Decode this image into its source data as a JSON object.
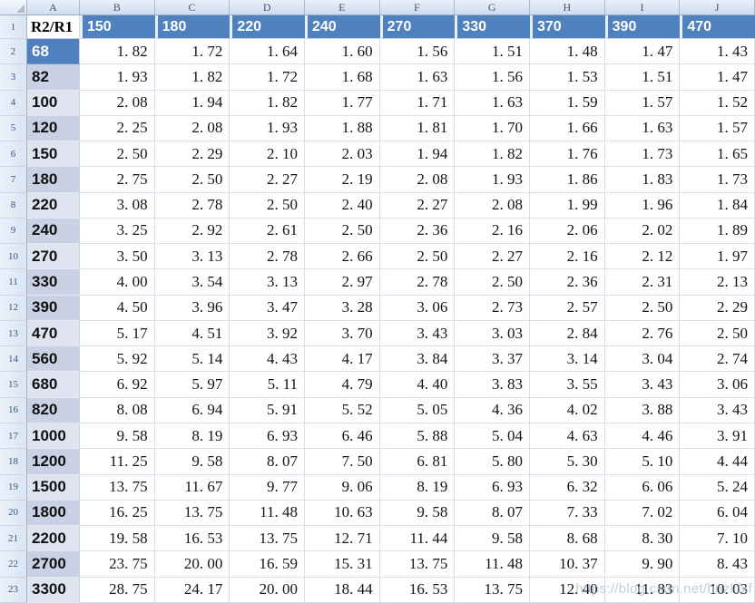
{
  "column_letters": [
    "A",
    "B",
    "C",
    "D",
    "E",
    "F",
    "G",
    "H",
    "I",
    "J"
  ],
  "header_row": {
    "row_number": "1",
    "corner_label": "R2/R1",
    "values": [
      "150",
      "180",
      "220",
      "240",
      "270",
      "330",
      "370",
      "390",
      "470"
    ]
  },
  "rows": [
    {
      "row_number": "2",
      "label": "68",
      "band": "blue",
      "values": [
        "1. 82",
        "1. 72",
        "1. 64",
        "1. 60",
        "1. 56",
        "1. 51",
        "1. 48",
        "1. 47",
        "1. 43"
      ]
    },
    {
      "row_number": "3",
      "label": "82",
      "band": "dark",
      "values": [
        "1. 93",
        "1. 82",
        "1. 72",
        "1. 68",
        "1. 63",
        "1. 56",
        "1. 53",
        "1. 51",
        "1. 47"
      ]
    },
    {
      "row_number": "4",
      "label": "100",
      "band": "light",
      "values": [
        "2. 08",
        "1. 94",
        "1. 82",
        "1. 77",
        "1. 71",
        "1. 63",
        "1. 59",
        "1. 57",
        "1. 52"
      ]
    },
    {
      "row_number": "5",
      "label": "120",
      "band": "dark",
      "values": [
        "2. 25",
        "2. 08",
        "1. 93",
        "1. 88",
        "1. 81",
        "1. 70",
        "1. 66",
        "1. 63",
        "1. 57"
      ]
    },
    {
      "row_number": "6",
      "label": "150",
      "band": "light",
      "values": [
        "2. 50",
        "2. 29",
        "2. 10",
        "2. 03",
        "1. 94",
        "1. 82",
        "1. 76",
        "1. 73",
        "1. 65"
      ]
    },
    {
      "row_number": "7",
      "label": "180",
      "band": "dark",
      "values": [
        "2. 75",
        "2. 50",
        "2. 27",
        "2. 19",
        "2. 08",
        "1. 93",
        "1. 86",
        "1. 83",
        "1. 73"
      ]
    },
    {
      "row_number": "8",
      "label": "220",
      "band": "light",
      "values": [
        "3. 08",
        "2. 78",
        "2. 50",
        "2. 40",
        "2. 27",
        "2. 08",
        "1. 99",
        "1. 96",
        "1. 84"
      ]
    },
    {
      "row_number": "9",
      "label": "240",
      "band": "dark",
      "values": [
        "3. 25",
        "2. 92",
        "2. 61",
        "2. 50",
        "2. 36",
        "2. 16",
        "2. 06",
        "2. 02",
        "1. 89"
      ]
    },
    {
      "row_number": "10",
      "label": "270",
      "band": "light",
      "values": [
        "3. 50",
        "3. 13",
        "2. 78",
        "2. 66",
        "2. 50",
        "2. 27",
        "2. 16",
        "2. 12",
        "1. 97"
      ]
    },
    {
      "row_number": "11",
      "label": "330",
      "band": "dark",
      "values": [
        "4. 00",
        "3. 54",
        "3. 13",
        "2. 97",
        "2. 78",
        "2. 50",
        "2. 36",
        "2. 31",
        "2. 13"
      ]
    },
    {
      "row_number": "12",
      "label": "390",
      "band": "dark",
      "values": [
        "4. 50",
        "3. 96",
        "3. 47",
        "3. 28",
        "3. 06",
        "2. 73",
        "2. 57",
        "2. 50",
        "2. 29"
      ]
    },
    {
      "row_number": "13",
      "label": "470",
      "band": "light",
      "values": [
        "5. 17",
        "4. 51",
        "3. 92",
        "3. 70",
        "3. 43",
        "3. 03",
        "2. 84",
        "2. 76",
        "2. 50"
      ]
    },
    {
      "row_number": "14",
      "label": "560",
      "band": "dark",
      "values": [
        "5. 92",
        "5. 14",
        "4. 43",
        "4. 17",
        "3. 84",
        "3. 37",
        "3. 14",
        "3. 04",
        "2. 74"
      ]
    },
    {
      "row_number": "15",
      "label": "680",
      "band": "light",
      "values": [
        "6. 92",
        "5. 97",
        "5. 11",
        "4. 79",
        "4. 40",
        "3. 83",
        "3. 55",
        "3. 43",
        "3. 06"
      ]
    },
    {
      "row_number": "16",
      "label": "820",
      "band": "dark",
      "values": [
        "8. 08",
        "6. 94",
        "5. 91",
        "5. 52",
        "5. 05",
        "4. 36",
        "4. 02",
        "3. 88",
        "3. 43"
      ]
    },
    {
      "row_number": "17",
      "label": "1000",
      "band": "light",
      "values": [
        "9. 58",
        "8. 19",
        "6. 93",
        "6. 46",
        "5. 88",
        "5. 04",
        "4. 63",
        "4. 46",
        "3. 91"
      ]
    },
    {
      "row_number": "18",
      "label": "1200",
      "band": "dark",
      "values": [
        "11. 25",
        "9. 58",
        "8. 07",
        "7. 50",
        "6. 81",
        "5. 80",
        "5. 30",
        "5. 10",
        "4. 44"
      ]
    },
    {
      "row_number": "19",
      "label": "1500",
      "band": "light",
      "values": [
        "13. 75",
        "11. 67",
        "9. 77",
        "9. 06",
        "8. 19",
        "6. 93",
        "6. 32",
        "6. 06",
        "5. 24"
      ]
    },
    {
      "row_number": "20",
      "label": "1800",
      "band": "dark",
      "values": [
        "16. 25",
        "13. 75",
        "11. 48",
        "10. 63",
        "9. 58",
        "8. 07",
        "7. 33",
        "7. 02",
        "6. 04"
      ]
    },
    {
      "row_number": "21",
      "label": "2200",
      "band": "light",
      "values": [
        "19. 58",
        "16. 53",
        "13. 75",
        "12. 71",
        "11. 44",
        "9. 58",
        "8. 68",
        "8. 30",
        "7. 10"
      ]
    },
    {
      "row_number": "22",
      "label": "2700",
      "band": "dark",
      "values": [
        "23. 75",
        "20. 00",
        "16. 59",
        "15. 31",
        "13. 75",
        "11. 48",
        "10. 37",
        "9. 90",
        "8. 43"
      ]
    },
    {
      "row_number": "23",
      "label": "3300",
      "band": "light",
      "values": [
        "28. 75",
        "24. 17",
        "20. 00",
        "18. 44",
        "16. 53",
        "13. 75",
        "12. 40",
        "11. 83",
        "10. 03"
      ]
    }
  ],
  "watermark": "https://blog.csdn.net/hnzldxf",
  "colors": {
    "accent_blue": "#4E81BD",
    "band_dark": "#CBD1E4",
    "band_light": "#DFE4F0",
    "header_text": "#3C5677"
  }
}
